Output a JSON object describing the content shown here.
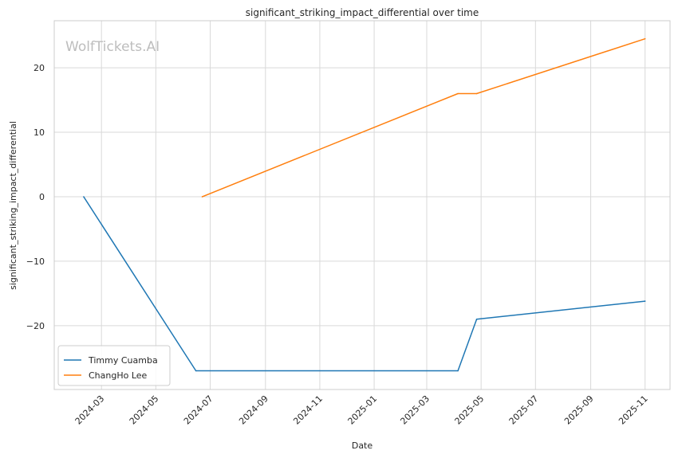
{
  "watermark": "WolfTickets.AI",
  "chart_data": {
    "type": "line",
    "title": "significant_striking_impact_differential over time",
    "xlabel": "Date",
    "ylabel": "significant_striking_impact_differential",
    "x_axis_type": "date",
    "xlim": [
      "2024-01-08",
      "2025-11-29"
    ],
    "ylim": [
      -29.9,
      27.3
    ],
    "x_ticks": [
      "2024-03",
      "2024-05",
      "2024-07",
      "2024-09",
      "2024-11",
      "2025-01",
      "2025-03",
      "2025-05",
      "2025-07",
      "2025-09",
      "2025-11"
    ],
    "y_ticks": [
      -20,
      -10,
      0,
      10,
      20
    ],
    "y_tick_labels": [
      "−20",
      "−10",
      "0",
      "10",
      "20"
    ],
    "grid": true,
    "legend_position": "lower-left",
    "series": [
      {
        "name": "Timmy Cuamba",
        "color": "#1f77b4",
        "points": [
          {
            "x": "2024-02-10",
            "y": 0
          },
          {
            "x": "2024-06-15",
            "y": -27
          },
          {
            "x": "2025-04-05",
            "y": -27
          },
          {
            "x": "2025-04-26",
            "y": -19
          },
          {
            "x": "2025-11-01",
            "y": -16.2
          }
        ]
      },
      {
        "name": "ChangHo Lee",
        "color": "#ff7f0e",
        "points": [
          {
            "x": "2024-06-22",
            "y": 0
          },
          {
            "x": "2025-04-05",
            "y": 16
          },
          {
            "x": "2025-04-26",
            "y": 16
          },
          {
            "x": "2025-11-01",
            "y": 24.5
          }
        ]
      }
    ]
  }
}
